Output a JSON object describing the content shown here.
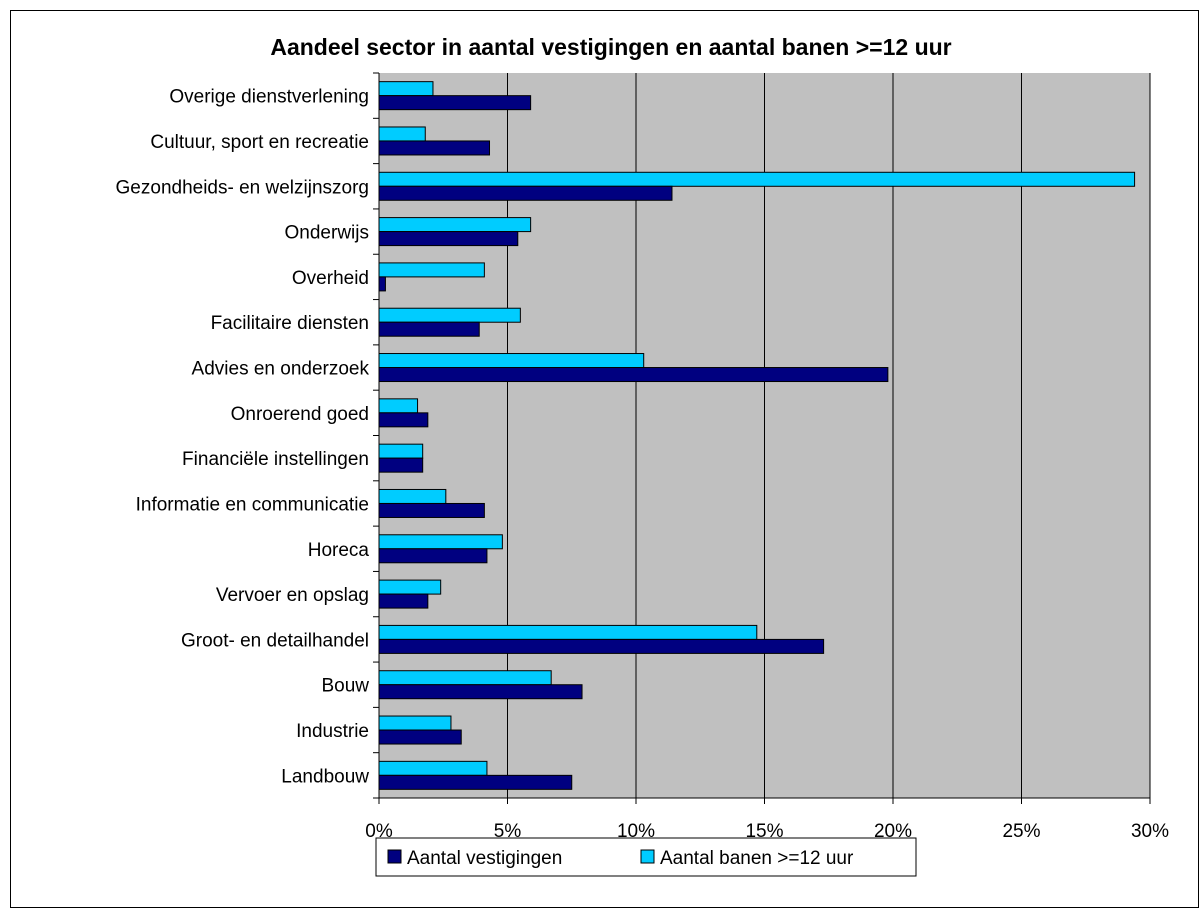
{
  "chart_data": {
    "type": "bar",
    "orientation": "horizontal",
    "title": "Aandeel sector in aantal vestigingen en aantal banen >=12 uur",
    "categories": [
      "Landbouw",
      "Industrie",
      "Bouw",
      "Groot- en detailhandel",
      "Vervoer en opslag",
      "Horeca",
      "Informatie en communicatie",
      "Financiële instellingen",
      "Onroerend goed",
      "Advies en onderzoek",
      "Facilitaire diensten",
      "Overheid",
      "Onderwijs",
      "Gezondheids- en welzijnszorg",
      "Cultuur, sport en recreatie",
      "Overige dienstverlening"
    ],
    "series": [
      {
        "name": "Aantal vestigingen",
        "color": "#000080",
        "values": [
          7.5,
          3.2,
          7.9,
          17.3,
          1.9,
          4.2,
          4.1,
          1.7,
          1.9,
          19.8,
          3.9,
          0.25,
          5.4,
          11.4,
          4.3,
          5.9
        ]
      },
      {
        "name": "Aantal banen >=12 uur",
        "color": "#00CCFF",
        "values": [
          4.2,
          2.8,
          6.7,
          14.7,
          2.4,
          4.8,
          2.6,
          1.7,
          1.5,
          10.3,
          5.5,
          4.1,
          5.9,
          29.4,
          1.8,
          2.1
        ]
      }
    ],
    "xlim": [
      0,
      30
    ],
    "xticks": [
      "0%",
      "5%",
      "10%",
      "15%",
      "20%",
      "25%",
      "30%"
    ],
    "xtick_values": [
      0,
      5,
      10,
      15,
      20,
      25,
      30
    ],
    "plot_background": "#C0C0C0",
    "grid": true,
    "legend_position": "bottom"
  }
}
